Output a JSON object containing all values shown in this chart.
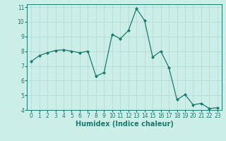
{
  "x": [
    0,
    1,
    2,
    3,
    4,
    5,
    6,
    7,
    8,
    9,
    10,
    11,
    12,
    13,
    14,
    15,
    16,
    17,
    18,
    19,
    20,
    21,
    22,
    23
  ],
  "y": [
    7.3,
    7.7,
    7.9,
    8.05,
    8.1,
    8.0,
    7.9,
    8.0,
    6.3,
    6.55,
    9.15,
    8.85,
    9.4,
    10.9,
    10.1,
    7.6,
    8.0,
    6.9,
    4.7,
    5.05,
    4.35,
    4.45,
    4.1,
    4.15
  ],
  "line_color": "#1a7a6e",
  "marker": "D",
  "marker_size": 2.0,
  "bg_color": "#cceee8",
  "grid_color": "#b0d8d2",
  "tick_color": "#1a7a6e",
  "xlabel": "Humidex (Indice chaleur)",
  "xlim": [
    -0.5,
    23.5
  ],
  "ylim": [
    4,
    11.2
  ],
  "yticks": [
    4,
    5,
    6,
    7,
    8,
    9,
    10,
    11
  ],
  "xticks": [
    0,
    1,
    2,
    3,
    4,
    5,
    6,
    7,
    8,
    9,
    10,
    11,
    12,
    13,
    14,
    15,
    16,
    17,
    18,
    19,
    20,
    21,
    22,
    23
  ],
  "font_size": 5.5,
  "xlabel_font_size": 7
}
